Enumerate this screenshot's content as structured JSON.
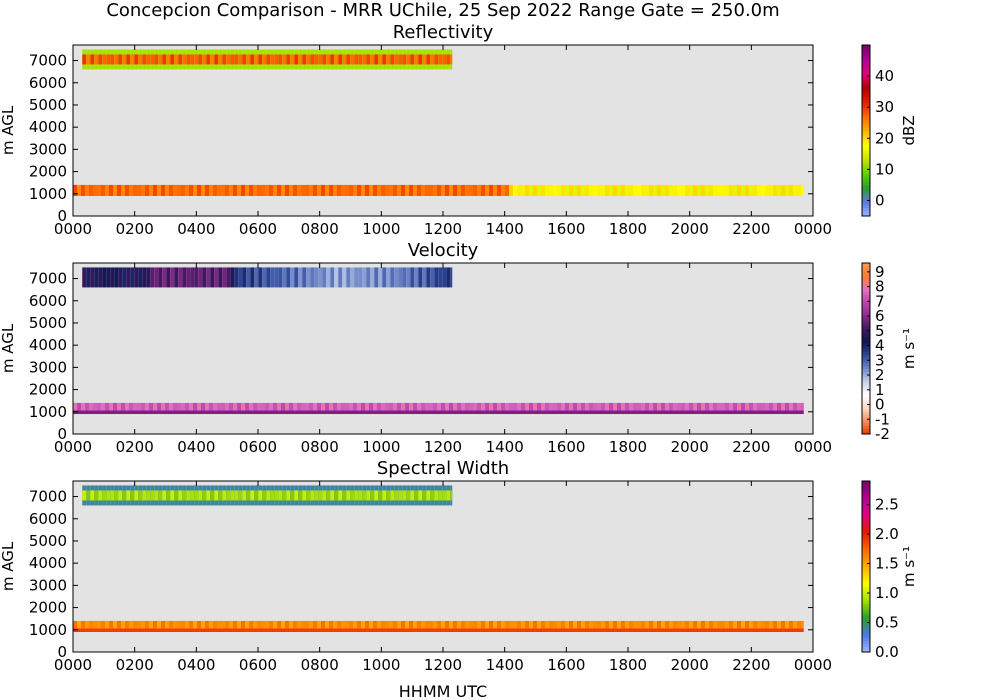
{
  "figure": {
    "suptitle": "Concepcion Comparison - MRR UChile, 25 Sep 2022 Range Gate = 250.0m",
    "xlabel": "HHMM UTC",
    "ylabel": "m AGL"
  },
  "colors": {
    "plot_background": "#e3e3e3",
    "axis": "#000000"
  },
  "chart_data": [
    {
      "type": "heatmap",
      "title": "Reflectivity",
      "xlabel": "HHMM UTC",
      "ylabel": "m AGL",
      "x_unit": "hours",
      "xlim": [
        0,
        24
      ],
      "ylim": [
        0,
        7700
      ],
      "x_ticks": [
        "0000",
        "0200",
        "0400",
        "0600",
        "0800",
        "1000",
        "1200",
        "1400",
        "1600",
        "1800",
        "2000",
        "2200",
        "0000"
      ],
      "y_ticks": [
        "0",
        "1000",
        "2000",
        "3000",
        "4000",
        "5000",
        "6000",
        "7000"
      ],
      "colorbar": {
        "label": "dBZ",
        "range": [
          -5,
          50
        ],
        "ticks": [
          "0",
          "10",
          "20",
          "30",
          "40"
        ],
        "colors": [
          "#9bb8ff",
          "#5b78e6",
          "#2a9d2a",
          "#5ed400",
          "#c8e600",
          "#ffff00",
          "#ffb000",
          "#ff6a00",
          "#e61a00",
          "#b40000",
          "#e6007e",
          "#b4009a",
          "#7a0064"
        ]
      },
      "layers": [
        {
          "name": "upper_layer",
          "x_range": [
            0.3,
            12.3
          ],
          "y_range": [
            6600,
            7500
          ],
          "value": 28,
          "edge_value": 12
        },
        {
          "name": "low_band",
          "x_range": [
            0.0,
            23.7
          ],
          "y_range": [
            900,
            1400
          ],
          "value_by_time": [
            [
              0,
              27
            ],
            [
              14,
              27
            ],
            [
              14.2,
              18
            ],
            [
              23.7,
              18
            ]
          ]
        }
      ]
    },
    {
      "type": "heatmap",
      "title": "Velocity",
      "xlabel": "HHMM UTC",
      "ylabel": "m AGL",
      "x_unit": "hours",
      "xlim": [
        0,
        24
      ],
      "ylim": [
        0,
        7700
      ],
      "x_ticks": [
        "0000",
        "0200",
        "0400",
        "0600",
        "0800",
        "1000",
        "1200",
        "1400",
        "1600",
        "1800",
        "2000",
        "2200",
        "0000"
      ],
      "y_ticks": [
        "0",
        "1000",
        "2000",
        "3000",
        "4000",
        "5000",
        "6000",
        "7000"
      ],
      "colorbar": {
        "label": "m s⁻¹",
        "range": [
          -2,
          9.6
        ],
        "ticks": [
          "-2",
          "-1",
          "0",
          "1",
          "2",
          "3",
          "4",
          "5",
          "6",
          "7",
          "8",
          "9"
        ],
        "colors": [
          "#e63c00",
          "#ff8a5a",
          "#ffd8c8",
          "#ffffff",
          "#c8d2ee",
          "#7088c8",
          "#30489a",
          "#101850",
          "#401860",
          "#8a2a8a",
          "#c040b0",
          "#e870c0",
          "#ff7a30",
          "#ff9a50"
        ]
      },
      "layers": [
        {
          "name": "upper_layer",
          "x_range": [
            0.3,
            12.3
          ],
          "y_range": [
            6600,
            7500
          ],
          "value_by_time": [
            [
              0.3,
              4.5
            ],
            [
              2.3,
              4.4
            ],
            [
              2.5,
              5.5
            ],
            [
              5.0,
              5.4
            ],
            [
              5.2,
              3.7
            ],
            [
              8.5,
              2.2
            ],
            [
              10.5,
              2.6
            ],
            [
              12.3,
              3.8
            ]
          ]
        },
        {
          "name": "low_band",
          "x_range": [
            0.0,
            23.7
          ],
          "y_range": [
            900,
            1400
          ],
          "value": 7.5,
          "lower_value": 5.8
        }
      ]
    },
    {
      "type": "heatmap",
      "title": "Spectral Width",
      "xlabel": "HHMM UTC",
      "ylabel": "m AGL",
      "x_unit": "hours",
      "xlim": [
        0,
        24
      ],
      "ylim": [
        0,
        7700
      ],
      "x_ticks": [
        "0000",
        "0200",
        "0400",
        "0600",
        "0800",
        "1000",
        "1200",
        "1400",
        "1600",
        "1800",
        "2000",
        "2200",
        "0000"
      ],
      "y_ticks": [
        "0",
        "1000",
        "2000",
        "3000",
        "4000",
        "5000",
        "6000",
        "7000"
      ],
      "colorbar": {
        "label": "m s⁻¹",
        "range": [
          0,
          2.9
        ],
        "ticks": [
          "0.0",
          "0.5",
          "1.0",
          "1.5",
          "2.0",
          "2.5"
        ],
        "colors": [
          "#a0b8ff",
          "#4a78e6",
          "#2a9d2a",
          "#9ee000",
          "#ffff00",
          "#ffb000",
          "#ff6a00",
          "#e61a00",
          "#e6007e",
          "#b4009a",
          "#7a0064"
        ]
      },
      "layers": [
        {
          "name": "upper_layer",
          "x_range": [
            0.3,
            12.3
          ],
          "y_range": [
            6600,
            7500
          ],
          "value": 0.9,
          "edge_value": 0.4
        },
        {
          "name": "low_band",
          "x_range": [
            0.0,
            23.7
          ],
          "y_range": [
            900,
            1400
          ],
          "value": 1.6,
          "lower_value": 1.9
        }
      ]
    }
  ]
}
